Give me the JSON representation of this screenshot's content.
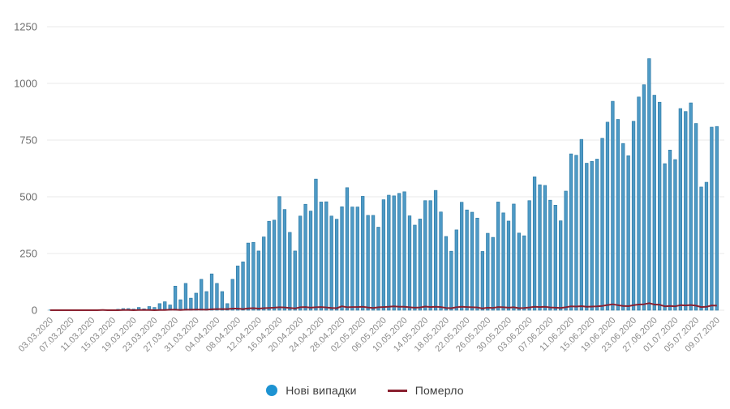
{
  "chart_data": {
    "type": "bar",
    "title": "",
    "xlabel": "",
    "ylabel": "",
    "ylim": [
      0,
      1250
    ],
    "y_ticks": [
      0,
      250,
      500,
      750,
      1000,
      1250
    ],
    "x_tick_every": 4,
    "grid": true,
    "legend_position": "bottom",
    "x": [
      "03.03.2020",
      "04.03.2020",
      "05.03.2020",
      "06.03.2020",
      "07.03.2020",
      "08.03.2020",
      "09.03.2020",
      "10.03.2020",
      "11.03.2020",
      "12.03.2020",
      "13.03.2020",
      "14.03.2020",
      "15.03.2020",
      "16.03.2020",
      "17.03.2020",
      "18.03.2020",
      "19.03.2020",
      "20.03.2020",
      "21.03.2020",
      "22.03.2020",
      "23.03.2020",
      "24.03.2020",
      "25.03.2020",
      "26.03.2020",
      "27.03.2020",
      "28.03.2020",
      "29.03.2020",
      "30.03.2020",
      "31.03.2020",
      "01.04.2020",
      "02.04.2020",
      "03.04.2020",
      "04.04.2020",
      "05.04.2020",
      "06.04.2020",
      "07.04.2020",
      "08.04.2020",
      "09.04.2020",
      "10.04.2020",
      "11.04.2020",
      "12.04.2020",
      "13.04.2020",
      "14.04.2020",
      "15.04.2020",
      "16.04.2020",
      "17.04.2020",
      "18.04.2020",
      "19.04.2020",
      "20.04.2020",
      "21.04.2020",
      "22.04.2020",
      "23.04.2020",
      "24.04.2020",
      "25.04.2020",
      "26.04.2020",
      "27.04.2020",
      "28.04.2020",
      "29.04.2020",
      "30.04.2020",
      "01.05.2020",
      "02.05.2020",
      "03.05.2020",
      "04.05.2020",
      "05.05.2020",
      "06.05.2020",
      "07.05.2020",
      "08.05.2020",
      "09.05.2020",
      "10.05.2020",
      "11.05.2020",
      "12.05.2020",
      "13.05.2020",
      "14.05.2020",
      "15.05.2020",
      "16.05.2020",
      "17.05.2020",
      "18.05.2020",
      "19.05.2020",
      "20.05.2020",
      "21.05.2020",
      "22.05.2020",
      "23.05.2020",
      "24.05.2020",
      "25.05.2020",
      "26.05.2020",
      "27.05.2020",
      "28.05.2020",
      "29.05.2020",
      "30.05.2020",
      "31.05.2020",
      "01.06.2020",
      "02.06.2020",
      "03.06.2020",
      "04.06.2020",
      "05.06.2020",
      "06.06.2020",
      "07.06.2020",
      "08.06.2020",
      "09.06.2020",
      "10.06.2020",
      "11.06.2020",
      "12.06.2020",
      "13.06.2020",
      "14.06.2020",
      "15.06.2020",
      "16.06.2020",
      "17.06.2020",
      "18.06.2020",
      "19.06.2020",
      "20.06.2020",
      "21.06.2020",
      "22.06.2020",
      "23.06.2020",
      "24.06.2020",
      "25.06.2020",
      "26.06.2020",
      "27.06.2020",
      "28.06.2020",
      "29.06.2020",
      "30.06.2020",
      "01.07.2020",
      "02.07.2020",
      "03.07.2020",
      "04.07.2020",
      "05.07.2020",
      "06.07.2020",
      "07.07.2020",
      "08.07.2020",
      "09.07.2020"
    ],
    "series": [
      {
        "name": "Нові випадки",
        "type": "bar",
        "color": "#4e9ac6",
        "edge_color": "#2e7ba6",
        "legend_color": "#1d93d2",
        "values": [
          1,
          0,
          0,
          0,
          1,
          0,
          0,
          0,
          0,
          2,
          1,
          0,
          0,
          4,
          7,
          7,
          5,
          12,
          6,
          16,
          12,
          29,
          37,
          23,
          106,
          46,
          118,
          53,
          75,
          136,
          82,
          160,
          118,
          82,
          29,
          136,
          195,
          213,
          296,
          299,
          261,
          323,
          392,
          397,
          501,
          444,
          343,
          261,
          415,
          467,
          437,
          578,
          477,
          478,
          415,
          401,
          456,
          540,
          455,
          455,
          502,
          418,
          418,
          366,
          487,
          507,
          504,
          515,
          522,
          416,
          375,
          402,
          483,
          483,
          528,
          433,
          325,
          260,
          354,
          476,
          442,
          432,
          406,
          259,
          339,
          321,
          477,
          429,
          393,
          468,
          340,
          328,
          483,
          588,
          553,
          550,
          485,
          463,
          394,
          525,
          689,
          683,
          753,
          648,
          656,
          666,
          758,
          829,
          921,
          841,
          735,
          681,
          833,
          940,
          994,
          1109,
          948,
          917,
          646,
          706,
          664,
          889,
          876,
          914,
          823,
          543,
          564,
          807,
          810
        ]
      },
      {
        "name": "Померло",
        "type": "line",
        "color": "#8a2130",
        "legend_color": "#8a2130",
        "values": [
          0,
          0,
          0,
          0,
          0,
          0,
          0,
          0,
          0,
          0,
          1,
          0,
          0,
          0,
          1,
          1,
          0,
          1,
          1,
          1,
          0,
          1,
          1,
          2,
          2,
          1,
          2,
          2,
          3,
          3,
          2,
          4,
          5,
          5,
          5,
          7,
          7,
          5,
          8,
          9,
          7,
          9,
          10,
          11,
          13,
          12,
          10,
          8,
          13,
          14,
          11,
          13,
          14,
          12,
          10,
          9,
          17,
          13,
          14,
          14,
          15,
          12,
          10,
          13,
          14,
          15,
          17,
          15,
          15,
          13,
          11,
          12,
          16,
          14,
          15,
          14,
          10,
          9,
          13,
          15,
          14,
          13,
          12,
          8,
          11,
          10,
          14,
          13,
          11,
          13,
          9,
          10,
          12,
          15,
          14,
          15,
          12,
          11,
          10,
          13,
          17,
          16,
          18,
          15,
          16,
          17,
          19,
          23,
          26,
          22,
          19,
          18,
          22,
          25,
          26,
          31,
          25,
          24,
          17,
          19,
          17,
          22,
          21,
          23,
          20,
          14,
          15,
          21,
          20
        ]
      }
    ]
  },
  "legend": {
    "cases_label": "Нові випадки",
    "deaths_label": "Померло"
  },
  "colors": {
    "background": "#ffffff",
    "gridline": "#e9e9e9",
    "y_tick_label": "#6e6e6e",
    "x_tick_label": "#8b8b8b",
    "bar_fill": "#4e9ac6",
    "bar_edge": "#2e7ba6",
    "deaths_line": "#8a2130",
    "legend_dot": "#1d93d2",
    "legend_text": "#3d3d3d"
  }
}
